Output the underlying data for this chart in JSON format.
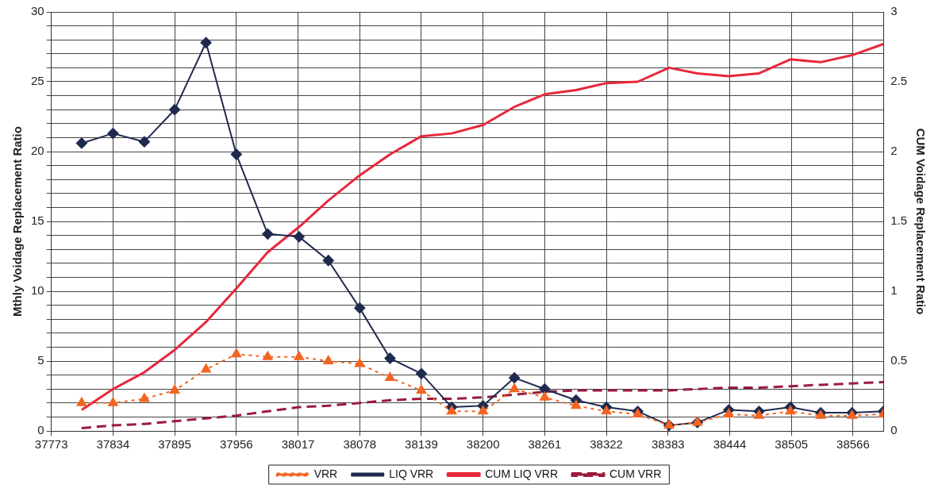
{
  "chart_data": {
    "type": "line",
    "x": [
      37803,
      37834,
      37865,
      37895,
      37926,
      37956,
      37987,
      38018,
      38047,
      38078,
      38108,
      38139,
      38169,
      38200,
      38231,
      38261,
      38292,
      38322,
      38353,
      38384,
      38412,
      38443,
      38473,
      38504,
      38534,
      38565,
      38596
    ],
    "xlim": [
      37773,
      38596
    ],
    "xticks": [
      37773,
      37834,
      37895,
      37956,
      38017,
      38078,
      38139,
      38200,
      38261,
      38322,
      38383,
      38444,
      38505,
      38566
    ],
    "ylabel": "Mthly Voidage Replacement Ratio",
    "y2label": "CUM Voidage Replacement Ratio",
    "ylim": [
      0,
      30
    ],
    "yticks": [
      0,
      {
        "value": 1,
        "label": null
      },
      {
        "value": 2,
        "label": null
      },
      {
        "value": 3,
        "label": null
      },
      {
        "value": 4,
        "label": null
      },
      5,
      {
        "value": 6,
        "label": null
      },
      {
        "value": 7,
        "label": null
      },
      {
        "value": 8,
        "label": null
      },
      {
        "value": 9,
        "label": null
      },
      10,
      {
        "value": 11,
        "label": null
      },
      {
        "value": 12,
        "label": null
      },
      {
        "value": 13,
        "label": null
      },
      {
        "value": 14,
        "label": null
      },
      15,
      {
        "value": 16,
        "label": null
      },
      {
        "value": 17,
        "label": null
      },
      {
        "value": 18,
        "label": null
      },
      {
        "value": 19,
        "label": null
      },
      20,
      {
        "value": 21,
        "label": null
      },
      {
        "value": 22,
        "label": null
      },
      {
        "value": 23,
        "label": null
      },
      {
        "value": 24,
        "label": null
      },
      25,
      {
        "value": 26,
        "label": null
      },
      {
        "value": 27,
        "label": null
      },
      {
        "value": 28,
        "label": null
      },
      {
        "value": 29,
        "label": null
      },
      30
    ],
    "y2lim": [
      0,
      3
    ],
    "y2ticks": [
      0,
      0.5,
      1,
      1.5,
      2,
      2.5,
      3
    ],
    "grid": true,
    "legend": "bottom",
    "series": [
      {
        "name": "LIQ VRR",
        "color": "#1f2a4f",
        "marker": "diamond",
        "line_style": "solid",
        "values": [
          20.6,
          21.3,
          20.7,
          23.0,
          27.8,
          19.8,
          14.1,
          13.9,
          12.2,
          8.8,
          5.2,
          4.1,
          1.7,
          1.8,
          3.8,
          3.0,
          2.2,
          1.7,
          1.4,
          0.4,
          0.6,
          1.5,
          1.4,
          1.7,
          1.3,
          1.3,
          1.4
        ]
      },
      {
        "name": "VRR",
        "color": "#f26522",
        "marker": "triangle",
        "line_style": "dotted",
        "values": [
          2.0,
          2.0,
          2.3,
          2.9,
          4.4,
          5.5,
          5.3,
          5.3,
          5.0,
          4.8,
          3.8,
          2.9,
          1.4,
          1.4,
          3.0,
          2.4,
          1.8,
          1.4,
          1.2,
          0.4,
          0.6,
          1.2,
          1.1,
          1.4,
          1.1,
          1.1,
          1.2
        ]
      },
      {
        "name": "CUM LIQ VRR",
        "color": "#e8283c",
        "marker": "none",
        "line_style": "solid",
        "axis": "y2",
        "values": [
          0.15,
          0.3,
          0.42,
          0.58,
          0.78,
          1.02,
          1.28,
          1.46,
          1.65,
          1.83,
          1.98,
          2.11,
          2.13,
          2.19,
          2.32,
          2.41,
          2.44,
          2.49,
          2.5,
          2.6,
          2.56,
          2.54,
          2.56,
          2.66,
          2.64,
          2.69,
          2.77
        ]
      },
      {
        "name": "CUM VRR",
        "color": "#9b1b3b",
        "marker": "none",
        "line_style": "dashed",
        "axis": "y2",
        "values": [
          0.02,
          0.04,
          0.05,
          0.07,
          0.09,
          0.11,
          0.14,
          0.17,
          0.18,
          0.2,
          0.22,
          0.23,
          0.23,
          0.24,
          0.26,
          0.28,
          0.29,
          0.29,
          0.29,
          0.29,
          0.3,
          0.31,
          0.31,
          0.32,
          0.33,
          0.34,
          0.35
        ]
      }
    ]
  }
}
